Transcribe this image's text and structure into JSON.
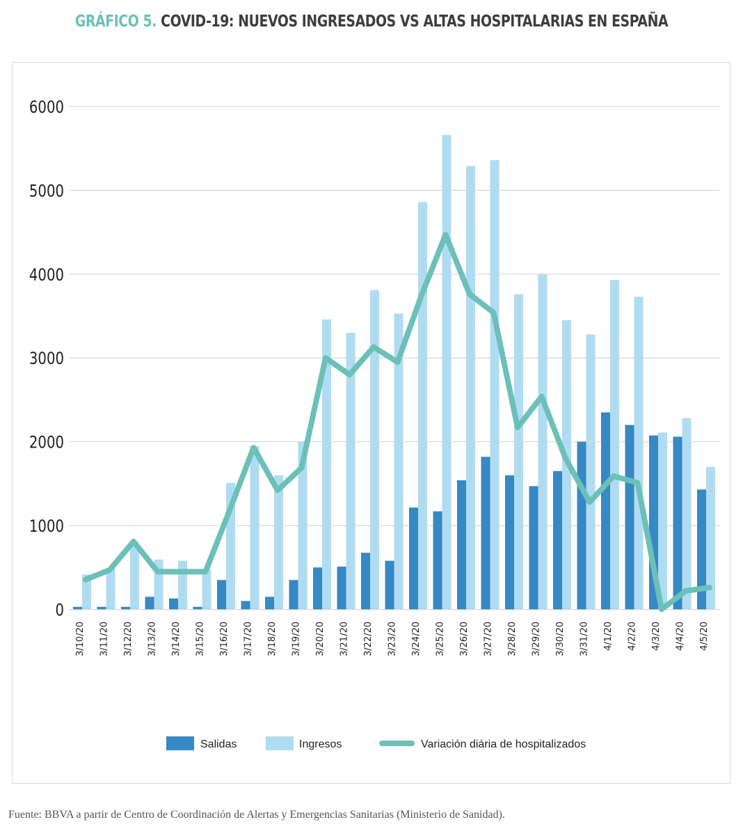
{
  "title_prefix": "GRÁFICO 5.",
  "title": "COVID-19: NUEVOS INGRESADOS VS ALTAS HOSPITALARIAS EN ESPAÑA",
  "footer": "Fuente: BBVA a partir de Centro de Coordinación de Alertas y Emergencias Sanitarias (Ministerio de Sanidad).",
  "chart_data": {
    "type": "bar",
    "categories": [
      "3/10/20",
      "3/11/20",
      "3/12/20",
      "3/13/20",
      "3/14/20",
      "3/15/20",
      "3/16/20",
      "3/17/20",
      "3/18/20",
      "3/19/20",
      "3/20/20",
      "3/21/20",
      "3/22/20",
      "3/23/20",
      "3/24/20",
      "3/25/20",
      "3/26/20",
      "3/27/20",
      "3/28/20",
      "3/29/20",
      "3/30/20",
      "3/31/20",
      "4/1/20",
      "4/2/20",
      "4/3/20",
      "4/4/20",
      "4/5/20"
    ],
    "series": [
      {
        "name": "Salidas",
        "type": "bar",
        "color": "#3589c4",
        "values": [
          30,
          30,
          30,
          150,
          130,
          30,
          350,
          100,
          150,
          350,
          500,
          510,
          675,
          580,
          1215,
          1170,
          1540,
          1820,
          1600,
          1470,
          1650,
          2000,
          2350,
          2200,
          2075,
          2060,
          1430
        ]
      },
      {
        "name": "Ingresos",
        "type": "bar",
        "color": "#b0dcf2",
        "values": [
          415,
          490,
          760,
          595,
          580,
          480,
          1510,
          1950,
          1600,
          2000,
          3460,
          3300,
          3810,
          3530,
          4860,
          5660,
          5290,
          5360,
          3760,
          4000,
          3450,
          3280,
          3930,
          3730,
          2110,
          2280,
          1700
        ]
      },
      {
        "name": "Variación diária de hospitalizados",
        "type": "line",
        "color": "#6cc0b8",
        "values": [
          355,
          470,
          810,
          450,
          450,
          450,
          1180,
          1930,
          1420,
          1690,
          3000,
          2800,
          3130,
          2950,
          3750,
          4470,
          3760,
          3540,
          2170,
          2540,
          1800,
          1280,
          1590,
          1510,
          0,
          220,
          260
        ]
      }
    ],
    "yticks": [
      0,
      1000,
      2000,
      3000,
      4000,
      5000,
      6000
    ],
    "ylim": [
      0,
      6000
    ],
    "grid": true,
    "legend_position": "bottom"
  }
}
